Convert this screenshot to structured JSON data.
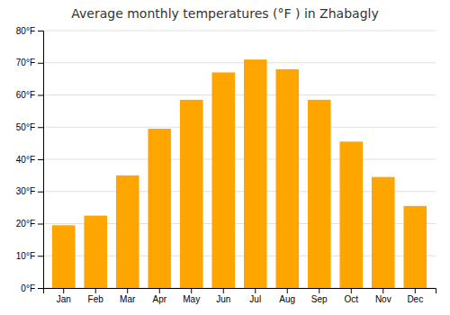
{
  "chart_data": {
    "type": "bar",
    "title": "Average monthly temperatures (°F ) in Zhabagly",
    "categories": [
      "Jan",
      "Feb",
      "Mar",
      "Apr",
      "May",
      "Jun",
      "Jul",
      "Aug",
      "Sep",
      "Oct",
      "Nov",
      "Dec"
    ],
    "values": [
      19.5,
      22.5,
      35.0,
      49.5,
      58.5,
      67.0,
      71.0,
      68.0,
      58.5,
      45.5,
      34.5,
      25.5
    ],
    "color": "#FFA500",
    "ylim": [
      0,
      80
    ],
    "yticks": [
      {
        "value": 0,
        "label": "0°F"
      },
      {
        "value": 10,
        "label": "10°F"
      },
      {
        "value": 20,
        "label": "20°F"
      },
      {
        "value": 30,
        "label": "30°F"
      },
      {
        "value": 40,
        "label": "40°F"
      },
      {
        "value": 50,
        "label": "50°F"
      },
      {
        "value": 60,
        "label": "60°F"
      },
      {
        "value": 70,
        "label": "70°F"
      },
      {
        "value": 80,
        "label": "80°F"
      }
    ],
    "grid": true
  }
}
